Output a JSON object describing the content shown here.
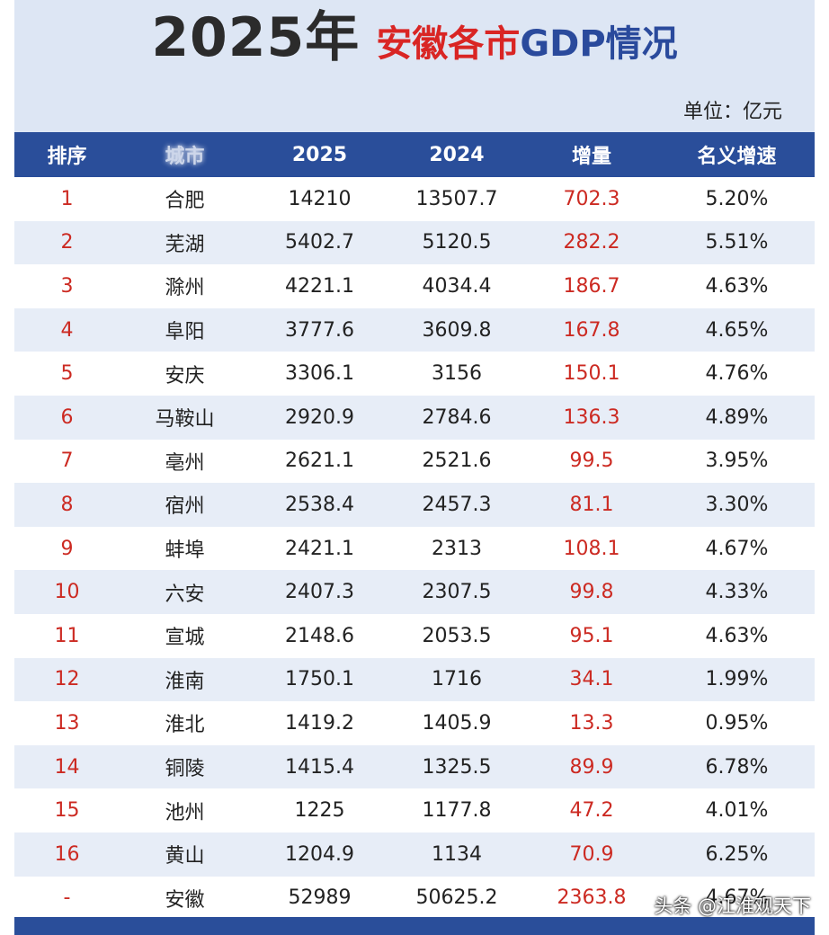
{
  "title": {
    "year": "2025年",
    "subtitle_red": "安徽各市",
    "subtitle_blue": "GDP情况"
  },
  "unit": "单位：亿元",
  "table": {
    "headers": [
      "排序",
      "城市",
      "2025",
      "2024",
      "增量",
      "名义增速"
    ],
    "rows": [
      [
        "1",
        "合肥",
        "14210",
        "13507.7",
        "702.3",
        "5.20%"
      ],
      [
        "2",
        "芜湖",
        "5402.7",
        "5120.5",
        "282.2",
        "5.51%"
      ],
      [
        "3",
        "滁州",
        "4221.1",
        "4034.4",
        "186.7",
        "4.63%"
      ],
      [
        "4",
        "阜阳",
        "3777.6",
        "3609.8",
        "167.8",
        "4.65%"
      ],
      [
        "5",
        "安庆",
        "3306.1",
        "3156",
        "150.1",
        "4.76%"
      ],
      [
        "6",
        "马鞍山",
        "2920.9",
        "2784.6",
        "136.3",
        "4.89%"
      ],
      [
        "7",
        "亳州",
        "2621.1",
        "2521.6",
        "99.5",
        "3.95%"
      ],
      [
        "8",
        "宿州",
        "2538.4",
        "2457.3",
        "81.1",
        "3.30%"
      ],
      [
        "9",
        "蚌埠",
        "2421.1",
        "2313",
        "108.1",
        "4.67%"
      ],
      [
        "10",
        "六安",
        "2407.3",
        "2307.5",
        "99.8",
        "4.33%"
      ],
      [
        "11",
        "宣城",
        "2148.6",
        "2053.5",
        "95.1",
        "4.63%"
      ],
      [
        "12",
        "淮南",
        "1750.1",
        "1716",
        "34.1",
        "1.99%"
      ],
      [
        "13",
        "淮北",
        "1419.2",
        "1405.9",
        "13.3",
        "0.95%"
      ],
      [
        "14",
        "铜陵",
        "1415.4",
        "1325.5",
        "89.9",
        "6.78%"
      ],
      [
        "15",
        "池州",
        "1225",
        "1177.8",
        "47.2",
        "4.01%"
      ],
      [
        "16",
        "黄山",
        "1204.9",
        "1134",
        "70.9",
        "6.25%"
      ],
      [
        "-",
        "安徽",
        "52989",
        "50625.2",
        "2363.8",
        "4.67%"
      ]
    ]
  },
  "watermark": "头条 @江淮观天下",
  "colors": {
    "header_bg": "#2a4e9a",
    "title_red": "#d92524",
    "title_blue": "#2a4a9c",
    "rank_increment_red": "#cc2a22",
    "panel_bg": "#dde6f4"
  }
}
